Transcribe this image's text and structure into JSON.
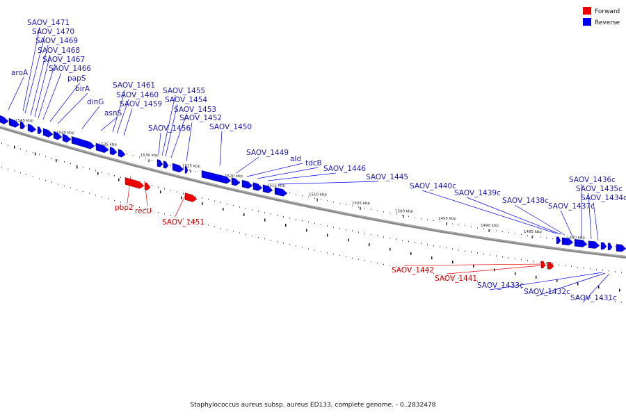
{
  "caption": "Staphylococcus aureus subsp. aureus ED133, complete genome. - 0..2832478",
  "legend": [
    {
      "label": "Forward",
      "color": "#ee0000"
    },
    {
      "label": "Reverse",
      "color": "#0000ee"
    }
  ],
  "colors": {
    "forward": "#ee0000",
    "reverse": "#0000ee",
    "forward_label": "#cc0000",
    "reverse_label": "#1a1aa8",
    "backbone": "#777777"
  },
  "ticks": [
    "1545 kbp",
    "1540 kbp",
    "1535 kbp",
    "1530 kbp",
    "1525 kbp",
    "1520 kbp",
    "1515 kbp",
    "1510 kbp",
    "1505 kbp",
    "1500 kbp",
    "1495 kbp",
    "1490 kbp",
    "1485 kbp",
    "1480 kbp"
  ],
  "features": {
    "reverse": [
      "SAOV_1471",
      "SAOV_1470",
      "SAOV_1469",
      "SAOV_1468",
      "SAOV_1467",
      "SAOV_1466",
      "aroA",
      "papS",
      "birA",
      "dinG",
      "asnS",
      "SAOV_1461",
      "SAOV_1460",
      "SAOV_1459",
      "SAOV_1456",
      "SAOV_1455",
      "SAOV_1454",
      "SAOV_1453",
      "SAOV_1452",
      "SAOV_1450",
      "SAOV_1449",
      "ald",
      "tdcB",
      "SAOV_1446",
      "SAOV_1445",
      "SAOV_1440c",
      "SAOV_1439c",
      "SAOV_1438c",
      "SAOV_1437c",
      "SAOV_1436c",
      "SAOV_1435c",
      "SAOV_1434c",
      "SAOV_1433c",
      "SAOV_1432c",
      "SAOV_1431c"
    ],
    "forward": [
      "pbp2",
      "recU",
      "SAOV_1451",
      "SAOV_1442",
      "SAOV_1441"
    ]
  }
}
